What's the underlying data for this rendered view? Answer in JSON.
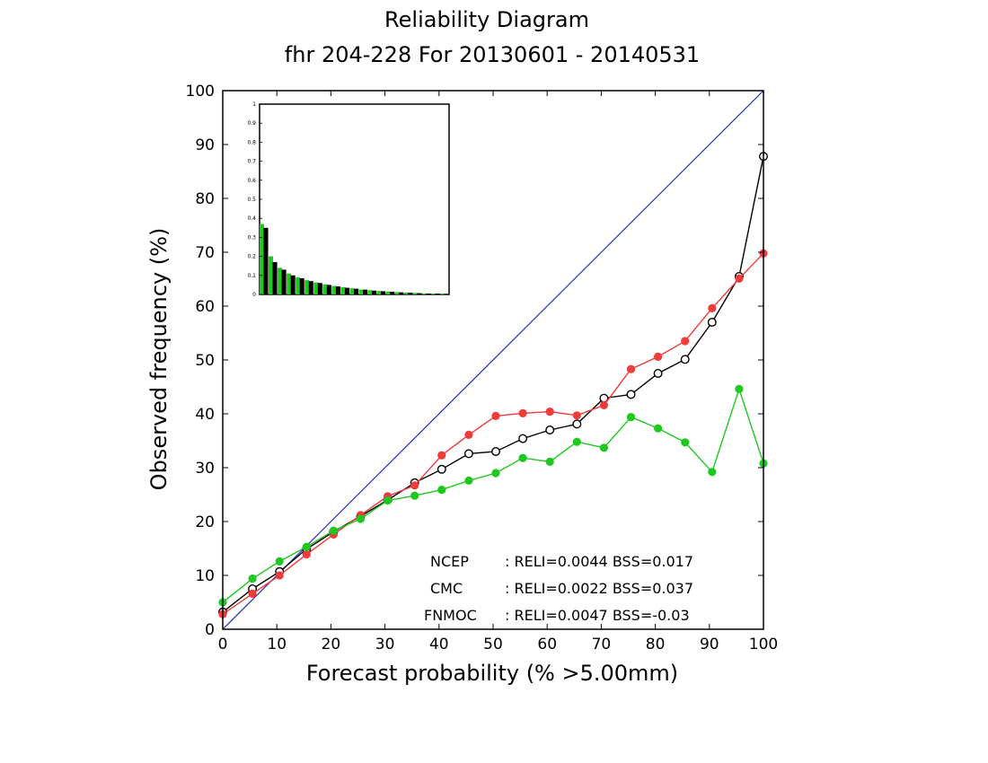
{
  "chart_data": {
    "type": "line",
    "title": "Reliability Diagram",
    "subtitle": "fhr 204-228 For 20130601 - 20140531",
    "xlabel": "Forecast probability (% >5.00mm)",
    "ylabel": "Observed frequency (%)",
    "xlim": [
      0,
      100
    ],
    "ylim": [
      0,
      100
    ],
    "xticks": [
      "0",
      "10",
      "20",
      "30",
      "40",
      "50",
      "60",
      "70",
      "80",
      "90",
      "100"
    ],
    "yticks": [
      "0",
      "10",
      "20",
      "30",
      "40",
      "50",
      "60",
      "70",
      "80",
      "90",
      "100"
    ],
    "grid": false,
    "legend_position": "bottom-right",
    "colors": {
      "diagonal": "#2030c0",
      "NCEP": "#000000",
      "CMC": "#ee3b3b",
      "FNMOC": "#1ec81e"
    },
    "x": [
      0,
      5.5,
      10.5,
      15.5,
      20.5,
      25.5,
      30.5,
      35.5,
      40.5,
      45.5,
      50.5,
      55.5,
      60.5,
      65.5,
      70.5,
      75.5,
      80.5,
      85.5,
      90.5,
      95.5,
      100
    ],
    "series": [
      {
        "name": "NCEP",
        "color": "#000000",
        "marker": "open-circle",
        "values": [
          3.2,
          7.5,
          10.7,
          14.9,
          18.1,
          21.0,
          24.0,
          27.2,
          29.7,
          32.6,
          33.0,
          35.4,
          37.0,
          38.1,
          42.9,
          43.6,
          47.5,
          50.1,
          57.0,
          65.5,
          87.8
        ]
      },
      {
        "name": "CMC",
        "color": "#ee3b3b",
        "marker": "filled-circle",
        "values": [
          2.8,
          6.6,
          10.0,
          13.9,
          17.6,
          21.2,
          24.7,
          26.7,
          32.3,
          36.1,
          39.6,
          40.1,
          40.4,
          39.7,
          41.6,
          48.3,
          50.6,
          53.5,
          59.6,
          65.1,
          69.8
        ]
      },
      {
        "name": "FNMOC",
        "color": "#1ec81e",
        "marker": "filled-circle",
        "values": [
          5.0,
          9.4,
          12.6,
          15.3,
          18.3,
          20.5,
          23.9,
          24.8,
          25.9,
          27.6,
          29.0,
          31.8,
          31.1,
          34.8,
          33.7,
          39.4,
          37.3,
          34.7,
          29.2,
          44.6,
          30.8
        ]
      }
    ],
    "legend": [
      {
        "name": "NCEP",
        "text": ": RELI=0.0044  BSS=0.017"
      },
      {
        "name": "CMC",
        "text": ": RELI=0.0022  BSS=0.037"
      },
      {
        "name": "FNMOC",
        "text": ": RELI=0.0047  BSS=-0.03"
      }
    ],
    "inset": {
      "type": "bar",
      "ylim": [
        0,
        1
      ],
      "yticks": [
        "0",
        "0.1",
        "0.2",
        "0.3",
        "0.4",
        "0.5",
        "0.6",
        "0.7",
        "0.8",
        "0.9",
        "1"
      ],
      "series": [
        {
          "name": "FNMOC",
          "color": "#1ec81e",
          "values": [
            0.37,
            0.2,
            0.14,
            0.11,
            0.09,
            0.075,
            0.063,
            0.053,
            0.045,
            0.038,
            0.032,
            0.026,
            0.022,
            0.018,
            0.015,
            0.012,
            0.01,
            0.008,
            0.006,
            0.004,
            0.003
          ]
        },
        {
          "name": "NCEP",
          "color": "#000000",
          "values": [
            0.35,
            0.17,
            0.13,
            0.1,
            0.085,
            0.07,
            0.06,
            0.05,
            0.042,
            0.035,
            0.03,
            0.025,
            0.02,
            0.017,
            0.014,
            0.011,
            0.009,
            0.007,
            0.005,
            0.004,
            0.002
          ]
        }
      ]
    }
  }
}
